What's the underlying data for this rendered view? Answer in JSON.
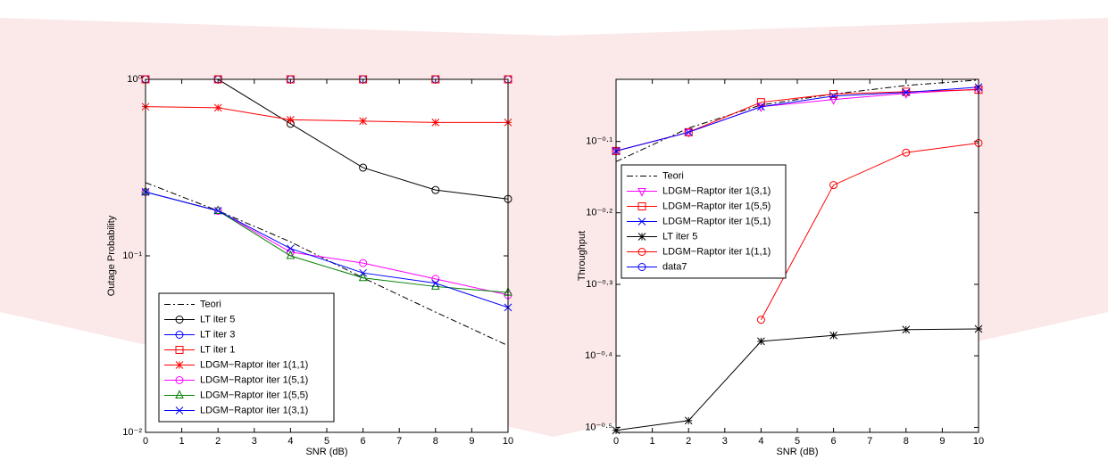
{
  "chart_data": [
    {
      "type": "line",
      "x_label": "SNR (dB)",
      "y_label": "Outage Probability",
      "log_y": true,
      "xlim": [
        0,
        10
      ],
      "xticks": [
        0,
        1,
        2,
        3,
        4,
        5,
        6,
        7,
        8,
        9,
        10
      ],
      "ylim": [
        0.01,
        1
      ],
      "yticks": [
        {
          "value": 0.01,
          "label": "10⁻²"
        },
        {
          "value": 0.1,
          "label": "10⁻¹"
        },
        {
          "value": 1,
          "label": "10⁰"
        }
      ],
      "legend": "lower left",
      "x": [
        0,
        2,
        4,
        6,
        8,
        10
      ],
      "series": [
        {
          "name": "Teori",
          "color": "#000000",
          "dash": "dashdot",
          "marker": "none",
          "values": [
            0.26,
            0.18,
            0.12,
            0.075,
            0.048,
            0.031
          ]
        },
        {
          "name": "LT iter 5",
          "color": "#000000",
          "dash": "solid",
          "marker": "circle",
          "values": [
            1,
            1,
            0.56,
            0.316,
            0.236,
            0.21
          ]
        },
        {
          "name": "LT iter 3",
          "color": "#0000ff",
          "dash": "solid",
          "marker": "circle",
          "values": [
            1,
            1,
            1,
            1,
            1,
            1
          ]
        },
        {
          "name": "LT iter 1",
          "color": "#ff0000",
          "dash": "solid",
          "marker": "square",
          "values": [
            1,
            1,
            1,
            1,
            1,
            1
          ]
        },
        {
          "name": "LDGM−Raptor iter 1(1,1)",
          "color": "#ff0000",
          "dash": "solid",
          "marker": "star",
          "values": [
            0.7,
            0.69,
            0.59,
            0.58,
            0.57,
            0.57
          ]
        },
        {
          "name": "LDGM−Raptor iter 1(5,1)",
          "color": "#ff00ff",
          "dash": "solid",
          "marker": "circle",
          "values": [
            0.23,
            0.18,
            0.105,
            0.091,
            0.074,
            0.06
          ]
        },
        {
          "name": "LDGM−Raptor iter 1(5,5)",
          "color": "#008000",
          "dash": "solid",
          "marker": "triangle-up",
          "values": [
            0.23,
            0.18,
            0.1,
            0.075,
            0.067,
            0.062
          ]
        },
        {
          "name": "LDGM−Raptor iter 1(3,1)",
          "color": "#0000ff",
          "dash": "solid",
          "marker": "x",
          "values": [
            0.23,
            0.18,
            0.11,
            0.08,
            0.07,
            0.051
          ]
        }
      ]
    },
    {
      "type": "line",
      "x_label": "SNR (dB)",
      "y_label": "Throughput",
      "log_y": true,
      "xlim": [
        0,
        10
      ],
      "xticks": [
        0,
        1,
        2,
        3,
        4,
        5,
        6,
        7,
        8,
        9,
        10
      ],
      "ylim": [
        0.311,
        0.97
      ],
      "yticks": [
        {
          "value": 0.316,
          "label": "10⁻⁰·⁵"
        },
        {
          "value": 0.398,
          "label": "10⁻⁰·⁴"
        },
        {
          "value": 0.501,
          "label": "10⁻⁰·³"
        },
        {
          "value": 0.631,
          "label": "10⁻⁰·²"
        },
        {
          "value": 0.794,
          "label": "10⁻⁰·¹"
        }
      ],
      "legend": "upper left",
      "x": [
        0,
        2,
        4,
        6,
        8,
        10
      ],
      "series": [
        {
          "name": "Teori",
          "color": "#000000",
          "dash": "dashdot",
          "marker": "none",
          "values": [
            0.744,
            0.829,
            0.893,
            0.925,
            0.951,
            0.968
          ]
        },
        {
          "name": "LDGM−Raptor iter 1(3,1)",
          "color": "#ff00ff",
          "dash": "solid",
          "marker": "triangle-down",
          "values": [
            0.77,
            0.818,
            0.888,
            0.909,
            0.927,
            0.94
          ]
        },
        {
          "name": "LDGM−Raptor iter 1(5,5)",
          "color": "#ff0000",
          "dash": "solid",
          "marker": "square",
          "values": [
            0.77,
            0.818,
            0.901,
            0.925,
            0.932,
            0.938
          ]
        },
        {
          "name": "LDGM−Raptor iter 1(5,1)",
          "color": "#0000ff",
          "dash": "solid",
          "marker": "x",
          "values": [
            0.77,
            0.818,
            0.888,
            0.919,
            0.93,
            0.946
          ]
        },
        {
          "name": "LT iter 5",
          "color": "#000000",
          "dash": "solid",
          "marker": "star",
          "values": [
            0.313,
            0.323,
            0.417,
            0.425,
            0.433,
            0.434
          ]
        },
        {
          "name": "LDGM−Raptor iter 1(1,1)",
          "color": "#ff0000",
          "dash": "solid",
          "marker": "circle",
          "values": [
            null,
            null,
            0.447,
            0.69,
            0.766,
            0.79
          ]
        },
        {
          "name": "data7",
          "color": "#0000ff",
          "dash": "solid",
          "marker": "circle",
          "values": [
            null,
            null,
            null,
            null,
            null,
            null
          ]
        }
      ]
    }
  ]
}
